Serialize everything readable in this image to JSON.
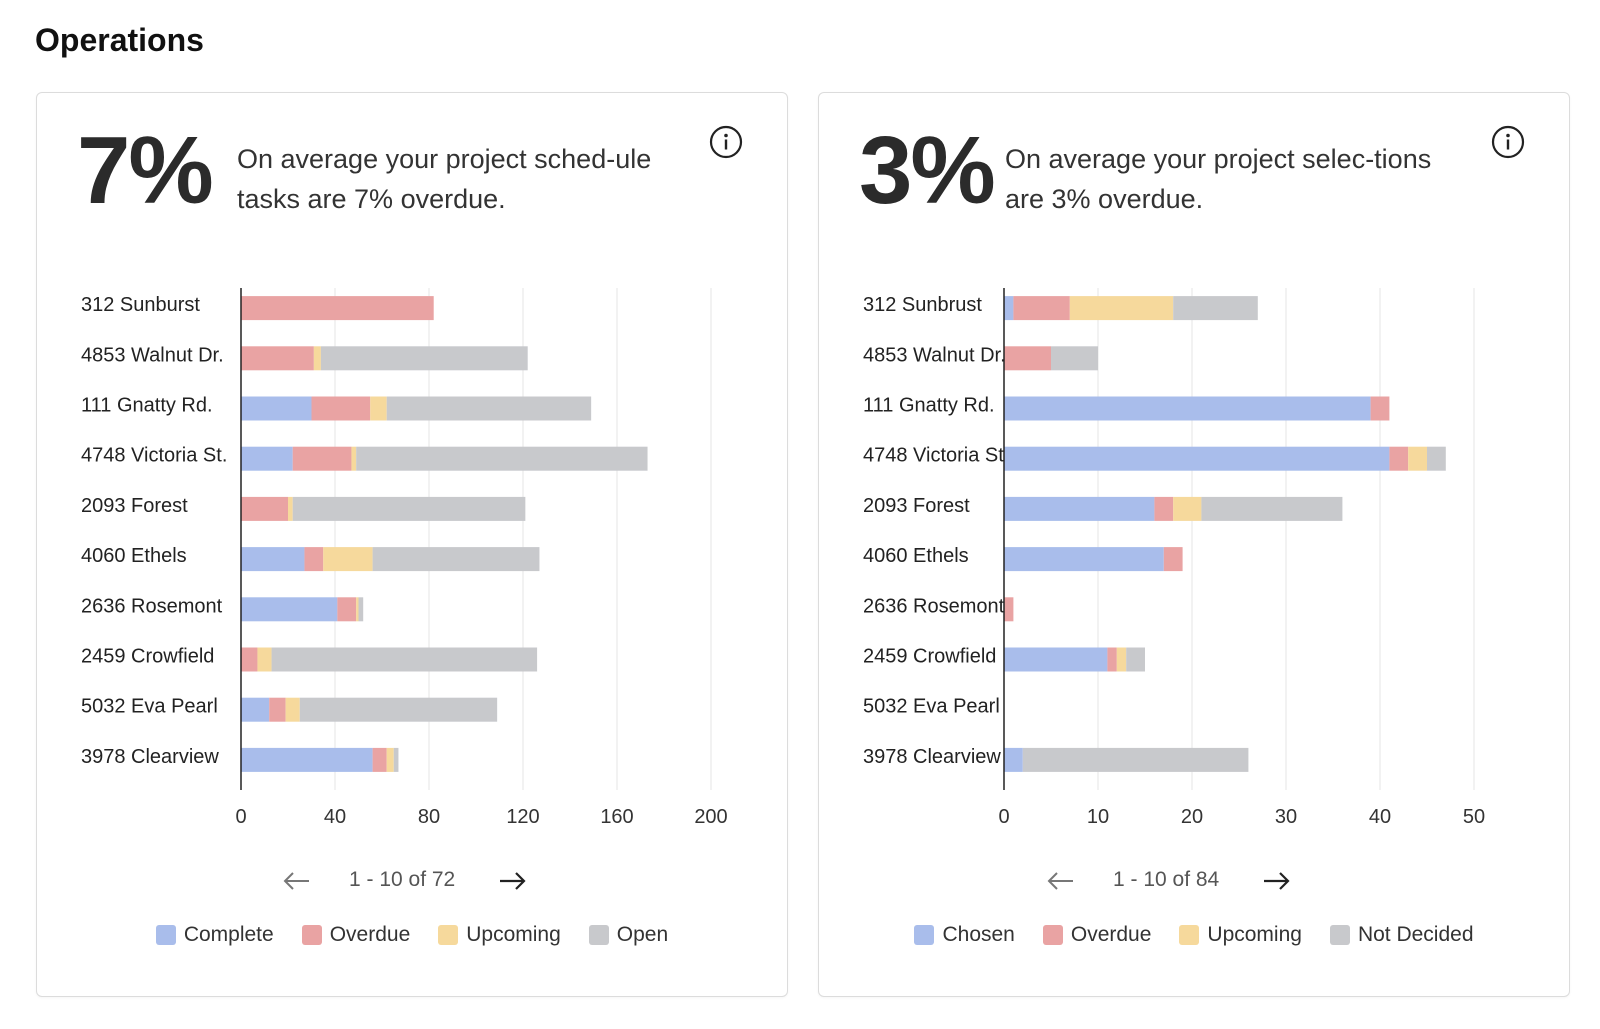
{
  "page": {
    "title": "Operations"
  },
  "colors": {
    "complete": "#a9bdeb",
    "overdue": "#e9a3a3",
    "upcoming": "#f6d99c",
    "open": "#c8c9cc"
  },
  "cards": [
    {
      "percent": "7%",
      "summary": "On average your project sched-ule tasks are 7% overdue.",
      "pager": {
        "range": "1 - 10 of 72"
      },
      "legend": [
        {
          "label": "Complete",
          "color": "#a9bdeb"
        },
        {
          "label": "Overdue",
          "color": "#e9a3a3"
        },
        {
          "label": "Upcoming",
          "color": "#f6d99c"
        },
        {
          "label": "Open",
          "color": "#c8c9cc"
        }
      ]
    },
    {
      "percent": "3%",
      "summary": "On average your project selec-tions are 3% overdue.",
      "pager": {
        "range": "1 - 10 of 84"
      },
      "legend": [
        {
          "label": "Chosen",
          "color": "#a9bdeb"
        },
        {
          "label": "Overdue",
          "color": "#e9a3a3"
        },
        {
          "label": "Upcoming",
          "color": "#f6d99c"
        },
        {
          "label": "Not Decided",
          "color": "#c8c9cc"
        }
      ]
    }
  ],
  "chart_data": [
    {
      "type": "bar",
      "orientation": "horizontal",
      "stacked": true,
      "categories": [
        "312 Sunburst",
        "4853 Walnut Dr.",
        "111 Gnatty Rd.",
        "4748 Victoria St.",
        "2093 Forest",
        "4060 Ethels",
        "2636 Rosemont",
        "2459 Crowfield",
        "5032 Eva Pearl",
        "3978 Clearview"
      ],
      "series": [
        {
          "name": "Complete",
          "color": "#a9bdeb",
          "values": [
            0,
            0,
            30,
            22,
            0,
            27,
            41,
            0,
            12,
            56
          ]
        },
        {
          "name": "Overdue",
          "color": "#e9a3a3",
          "values": [
            82,
            31,
            25,
            25,
            20,
            8,
            8,
            7,
            7,
            6
          ]
        },
        {
          "name": "Upcoming",
          "color": "#f6d99c",
          "values": [
            0,
            3,
            7,
            2,
            2,
            21,
            1,
            6,
            6,
            3
          ]
        },
        {
          "name": "Open",
          "color": "#c8c9cc",
          "values": [
            0,
            88,
            87,
            124,
            99,
            71,
            2,
            113,
            84,
            2
          ]
        }
      ],
      "xlim": [
        0,
        200
      ],
      "xticks": [
        0,
        40,
        80,
        120,
        160,
        200
      ],
      "grid": true,
      "legend": "bottom"
    },
    {
      "type": "bar",
      "orientation": "horizontal",
      "stacked": true,
      "categories": [
        "312 Sunbrust",
        "4853 Walnut Dr.",
        "111 Gnatty Rd.",
        "4748 Victoria St.",
        "2093 Forest",
        "4060 Ethels",
        "2636 Rosemont",
        "2459 Crowfield",
        "5032 Eva Pearl",
        "3978 Clearview"
      ],
      "series": [
        {
          "name": "Chosen",
          "color": "#a9bdeb",
          "values": [
            1,
            0,
            39,
            41,
            16,
            17,
            0,
            11,
            0,
            2
          ]
        },
        {
          "name": "Overdue",
          "color": "#e9a3a3",
          "values": [
            6,
            5,
            2,
            2,
            2,
            2,
            1,
            1,
            0,
            0
          ]
        },
        {
          "name": "Upcoming",
          "color": "#f6d99c",
          "values": [
            11,
            0,
            0,
            2,
            3,
            0,
            0,
            1,
            0,
            0
          ]
        },
        {
          "name": "Not Decided",
          "color": "#c8c9cc",
          "values": [
            9,
            5,
            0,
            2,
            15,
            0,
            0,
            2,
            0,
            24
          ]
        }
      ],
      "xlim": [
        0,
        50
      ],
      "xticks": [
        0,
        10,
        20,
        30,
        40,
        50
      ],
      "grid": true,
      "legend": "bottom"
    }
  ]
}
